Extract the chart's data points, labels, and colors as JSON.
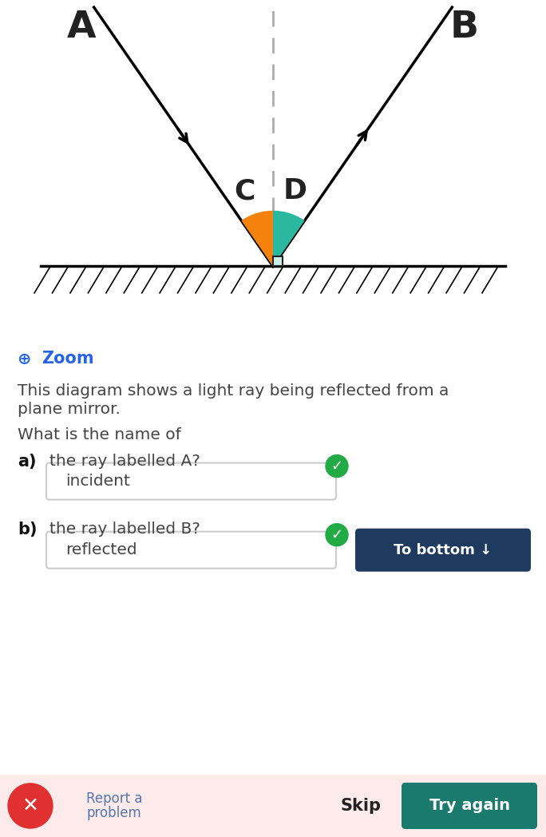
{
  "bg_color": "#ffffff",
  "diagram_bg": "#ffffff",
  "mirror_color": "#000000",
  "hatch_color": "#000000",
  "normal_color": "#aaaaaa",
  "ray_color": "#000000",
  "orange_color": "#f5820d",
  "teal_color": "#2ab8a0",
  "light_teal_color": "#c8eeea",
  "label_A": "A",
  "label_B": "B",
  "label_C": "C",
  "label_D": "D",
  "zoom_icon_color": "#2563eb",
  "zoom_text": "Zoom",
  "body_text1": "This diagram shows a light ray being reflected from a",
  "body_text2": "plane mirror.",
  "question_text": "What is the name of",
  "qa_text": "a)",
  "qb_text": "b)",
  "qa_label": "the ray labelled A?",
  "qb_label": "the ray labelled B?",
  "answer_a": "incident",
  "answer_b": "reflected",
  "button_text": "To bottom ↓",
  "button_color": "#1e3a5f",
  "button_text_color": "#ffffff",
  "skip_text": "Skip",
  "tryagain_text": "Try again",
  "tryagain_color": "#1a7a6e",
  "report_text_line1": "Report a",
  "report_text_line2": "problem",
  "report_color": "#5577aa",
  "footer_bg": "#fdeaea",
  "x_icon_color": "#e03030",
  "checkmark_color": "#22aa44",
  "input_border": "#cccccc",
  "text_color": "#222222",
  "subtext_color": "#444444",
  "bold_text_color": "#111111"
}
